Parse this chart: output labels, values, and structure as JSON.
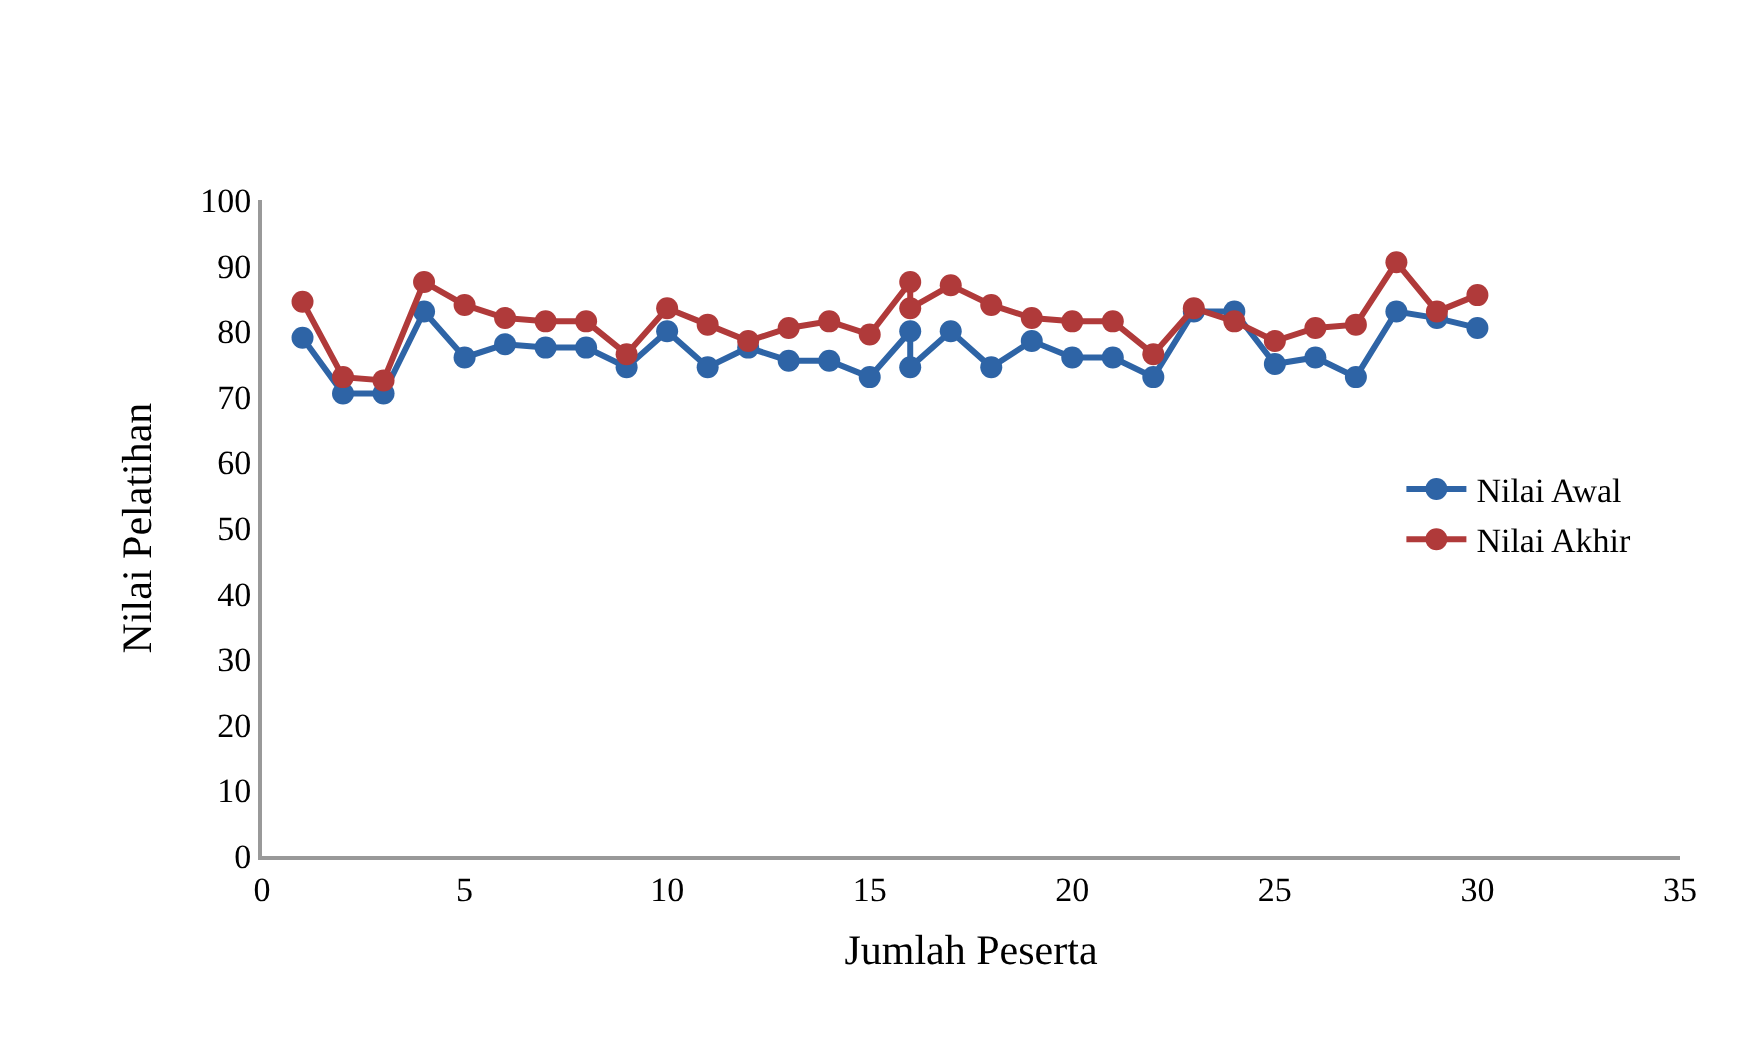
{
  "chart_data": {
    "type": "line",
    "xlabel": "Jumlah Peserta",
    "ylabel": "Nilai Pelatihan",
    "x": [
      1,
      2,
      3,
      4,
      5,
      6,
      7,
      8,
      9,
      10,
      11,
      12,
      13,
      14,
      15,
      16,
      16,
      17,
      18,
      19,
      20,
      21,
      22,
      23,
      24,
      25,
      26,
      27,
      28,
      29,
      30
    ],
    "series": [
      {
        "name": "Nilai Awal",
        "color": "#2e64a6",
        "values": [
          79,
          70.5,
          70.5,
          83,
          76,
          78,
          77.5,
          77.5,
          74.5,
          80,
          74.5,
          77.5,
          75.5,
          75.5,
          73,
          80,
          74.5,
          80,
          74.5,
          78.5,
          76,
          76,
          73,
          83,
          83,
          75,
          76,
          73,
          83,
          82,
          80.5
        ]
      },
      {
        "name": "Nilai Akhir",
        "color": "#b03a3a",
        "values": [
          84.5,
          73,
          72.5,
          87.5,
          84,
          82,
          81.5,
          81.5,
          76.5,
          83.5,
          81,
          78.5,
          80.5,
          81.5,
          79.5,
          87.5,
          83.5,
          87,
          84,
          82,
          81.5,
          81.5,
          76.5,
          83.5,
          81.5,
          78.5,
          80.5,
          81,
          90.5,
          83,
          85.5
        ]
      }
    ],
    "xlim": [
      0,
      35
    ],
    "xticks": [
      0,
      5,
      10,
      15,
      20,
      25,
      30,
      35
    ],
    "ylim": [
      0,
      100
    ],
    "yticks": [
      0,
      10,
      20,
      30,
      40,
      50,
      60,
      70,
      80,
      90,
      100
    ],
    "grid": false,
    "legend": "right",
    "marker": "circle",
    "line_style": "solid"
  }
}
